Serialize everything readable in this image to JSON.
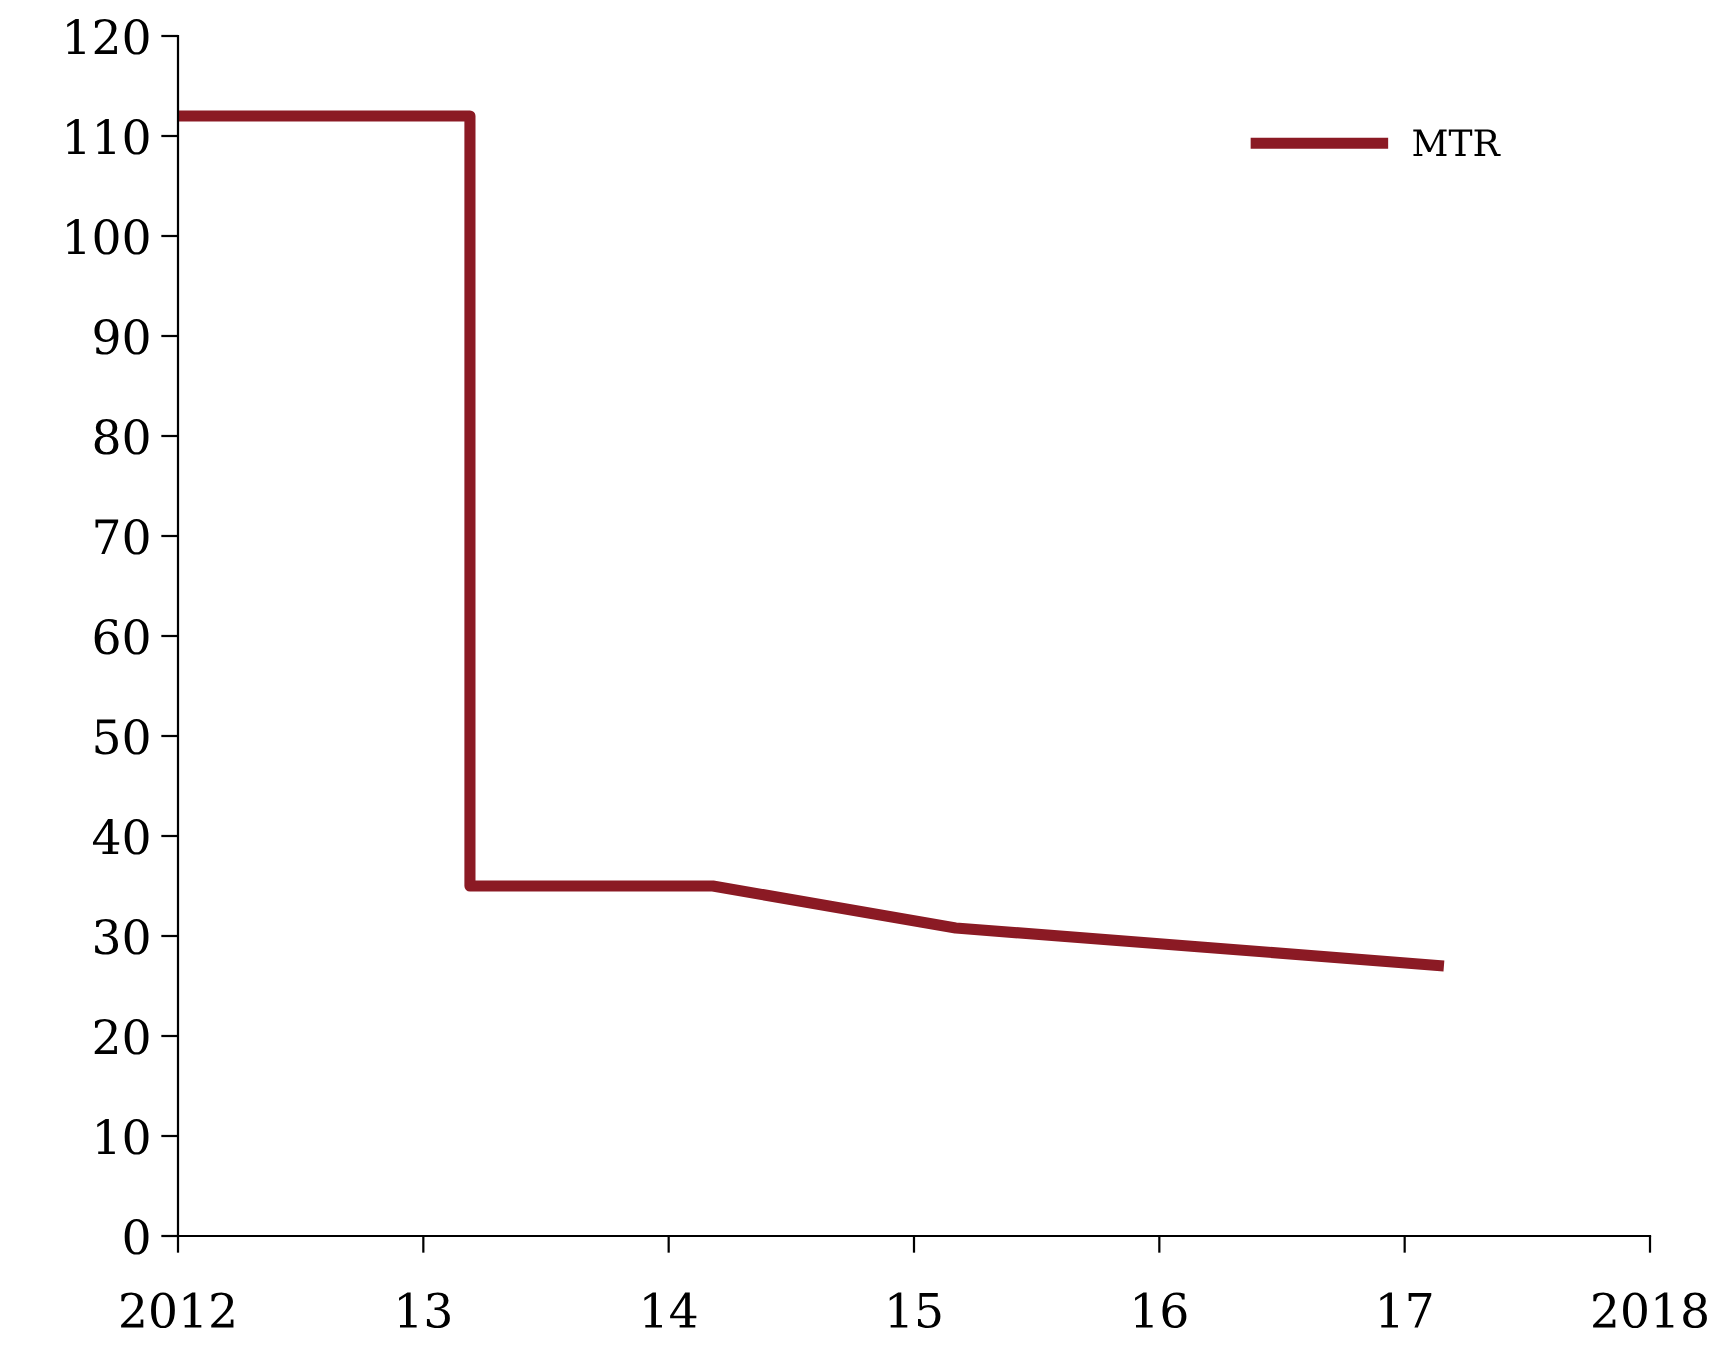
{
  "chart_data": {
    "type": "line",
    "x": [
      2012.0,
      2013.19,
      2013.19,
      2014.18,
      2015.17,
      2016.17,
      2017.16
    ],
    "series": [
      {
        "name": "MTR",
        "color": "#8b1a24",
        "values": [
          112,
          112,
          35,
          35,
          30.8,
          28.9,
          27
        ]
      }
    ],
    "xlim": [
      2012,
      2018
    ],
    "xticks": [
      2012,
      {
        "value": 2013,
        "label": "13"
      },
      {
        "value": 2014,
        "label": "14"
      },
      {
        "value": 2015,
        "label": "15"
      },
      {
        "value": 2016,
        "label": "16"
      },
      {
        "value": 2017,
        "label": "17"
      },
      2018
    ],
    "ylim": [
      0,
      120
    ],
    "yticks": [
      0,
      10,
      20,
      30,
      40,
      50,
      60,
      70,
      80,
      90,
      100,
      110,
      120
    ],
    "grid": false,
    "legend": "top right",
    "marker": "none",
    "line_style": "solid"
  }
}
